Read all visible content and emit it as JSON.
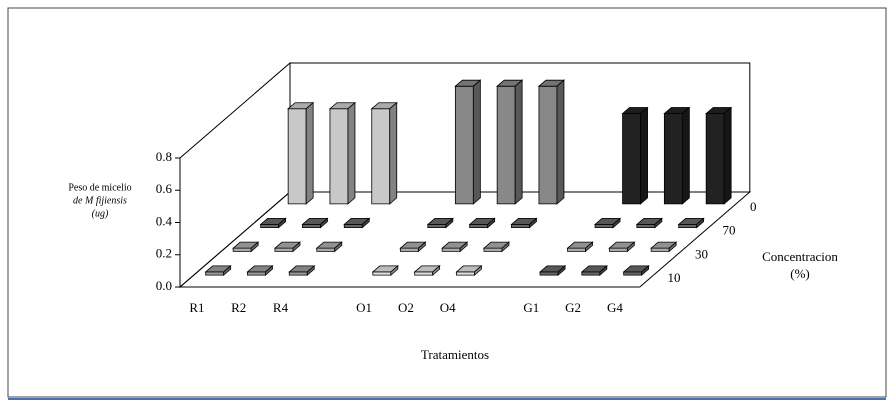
{
  "chart_data": {
    "type": "bar3d",
    "ylabel": [
      "Peso de micelio",
      "de M fijiensis",
      "(ug)"
    ],
    "xlabel": "Tratamientos",
    "zlabel": [
      "Concentracion",
      "(%)"
    ],
    "categories": [
      "R1",
      "R2",
      "R4",
      null,
      "O1",
      "O2",
      "O4",
      null,
      "G1",
      "G2",
      "G4"
    ],
    "series": [
      {
        "name": "10",
        "values": [
          0.02,
          0.02,
          0.02,
          null,
          0.02,
          0.02,
          0.02,
          null,
          0.02,
          0.02,
          0.02
        ],
        "colors": [
          "#999999",
          "#999999",
          "#999999",
          null,
          "#dddddd",
          "#dddddd",
          "#dddddd",
          null,
          "#666666",
          "#666666",
          "#666666"
        ]
      },
      {
        "name": "30",
        "values": [
          0.02,
          0.02,
          0.02,
          null,
          0.02,
          0.02,
          0.02,
          null,
          0.02,
          0.02,
          0.02
        ],
        "colors": [
          "#aaaaaa",
          "#aaaaaa",
          "#aaaaaa",
          null,
          "#aaaaaa",
          "#aaaaaa",
          "#aaaaaa",
          null,
          "#aaaaaa",
          "#aaaaaa",
          "#aaaaaa"
        ]
      },
      {
        "name": "70",
        "values": [
          0.02,
          0.02,
          0.02,
          null,
          0.02,
          0.02,
          0.02,
          null,
          0.02,
          0.02,
          0.02
        ],
        "colors": [
          "#666666",
          "#666666",
          "#666666",
          null,
          "#666666",
          "#666666",
          "#666666",
          null,
          "#666666",
          "#666666",
          "#666666"
        ]
      },
      {
        "name": "0",
        "values": [
          0.59,
          0.59,
          0.59,
          null,
          0.73,
          0.73,
          0.73,
          null,
          0.56,
          0.56,
          0.56
        ],
        "colors": [
          "#c8c8c8",
          "#c8c8c8",
          "#c8c8c8",
          null,
          "#888888",
          "#888888",
          "#888888",
          null,
          "#222222",
          "#222222",
          "#222222"
        ]
      }
    ],
    "ylim": [
      0,
      0.8
    ],
    "yticks": [
      {
        "value": 0,
        "label": "0.0"
      },
      0.2,
      0.4,
      0.6,
      0.8
    ],
    "grid": false
  }
}
